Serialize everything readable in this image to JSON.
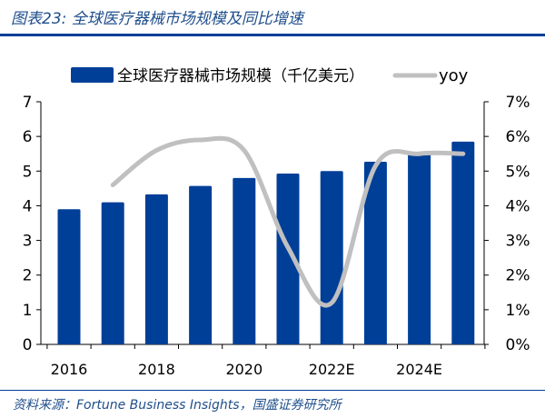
{
  "title": "图表23:  全球医疗器械市场规模及同比增速",
  "source": "资料来源：Fortune Business Insights，国盛证券研究所",
  "chart_data": {
    "type": "bar+line",
    "categories": [
      "2016",
      "2017",
      "2018",
      "2019",
      "2020",
      "2021",
      "2022E",
      "2023E",
      "2024E",
      "2025E"
    ],
    "x_tick_labels": [
      "2016",
      "2018",
      "2020",
      "2022E",
      "2024E"
    ],
    "series": [
      {
        "name": "全球医疗器械市场规模（千亿美元）",
        "type": "bar",
        "axis": "left",
        "color": "#003f98",
        "values": [
          3.9,
          4.1,
          4.33,
          4.57,
          4.8,
          4.93,
          5.0,
          5.27,
          5.55,
          5.85
        ]
      },
      {
        "name": "yoy",
        "type": "line",
        "axis": "right",
        "color": "#c0c0c0",
        "values": [
          null,
          4.6,
          5.6,
          5.9,
          5.6,
          2.8,
          1.2,
          5.15,
          5.5,
          5.5
        ]
      }
    ],
    "left_axis": {
      "ylim": [
        0,
        7
      ],
      "ticks": [
        "0",
        "1",
        "2",
        "3",
        "4",
        "5",
        "6",
        "7"
      ]
    },
    "right_axis": {
      "ylim": [
        0,
        7
      ],
      "ticks": [
        "0%",
        "1%",
        "2%",
        "3%",
        "4%",
        "5%",
        "6%",
        "7%"
      ]
    },
    "legend": "top",
    "grid": false
  }
}
